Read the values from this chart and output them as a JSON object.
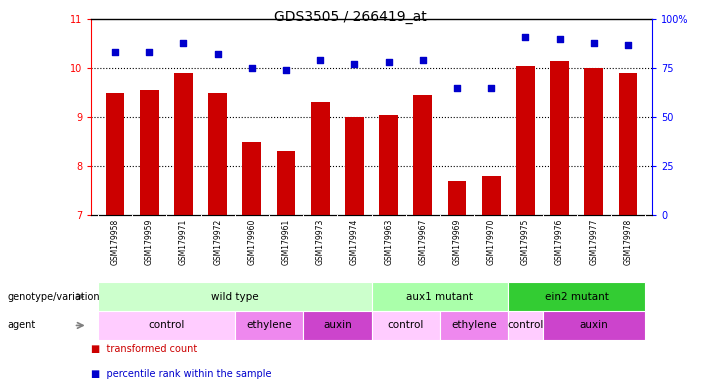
{
  "title": "GDS3505 / 266419_at",
  "samples": [
    "GSM179958",
    "GSM179959",
    "GSM179971",
    "GSM179972",
    "GSM179960",
    "GSM179961",
    "GSM179973",
    "GSM179974",
    "GSM179963",
    "GSM179967",
    "GSM179969",
    "GSM179970",
    "GSM179975",
    "GSM179976",
    "GSM179977",
    "GSM179978"
  ],
  "bar_values": [
    9.5,
    9.55,
    9.9,
    9.5,
    8.5,
    8.3,
    9.3,
    9.0,
    9.05,
    9.45,
    7.7,
    7.8,
    10.05,
    10.15,
    10.0,
    9.9
  ],
  "dot_values": [
    83,
    83,
    88,
    82,
    75,
    74,
    79,
    77,
    78,
    79,
    65,
    65,
    91,
    90,
    88,
    87
  ],
  "bar_color": "#cc0000",
  "dot_color": "#0000cc",
  "ylim_left": [
    7,
    11
  ],
  "ylim_right": [
    0,
    100
  ],
  "yticks_left": [
    7,
    8,
    9,
    10,
    11
  ],
  "yticks_right": [
    0,
    25,
    50,
    75,
    100
  ],
  "genotype_groups": [
    {
      "label": "wild type",
      "start": 0,
      "end": 7,
      "color": "#ccffcc"
    },
    {
      "label": "aux1 mutant",
      "start": 8,
      "end": 11,
      "color": "#aaffaa"
    },
    {
      "label": "ein2 mutant",
      "start": 12,
      "end": 15,
      "color": "#33cc33"
    }
  ],
  "agent_groups": [
    {
      "label": "control",
      "start": 0,
      "end": 3,
      "color": "#ffccff"
    },
    {
      "label": "ethylene",
      "start": 4,
      "end": 5,
      "color": "#ee88ee"
    },
    {
      "label": "auxin",
      "start": 6,
      "end": 7,
      "color": "#cc44cc"
    },
    {
      "label": "control",
      "start": 8,
      "end": 9,
      "color": "#ffccff"
    },
    {
      "label": "ethylene",
      "start": 10,
      "end": 11,
      "color": "#ee88ee"
    },
    {
      "label": "control",
      "start": 12,
      "end": 12,
      "color": "#ffccff"
    },
    {
      "label": "auxin",
      "start": 13,
      "end": 15,
      "color": "#cc44cc"
    }
  ],
  "background_color": "#ffffff"
}
